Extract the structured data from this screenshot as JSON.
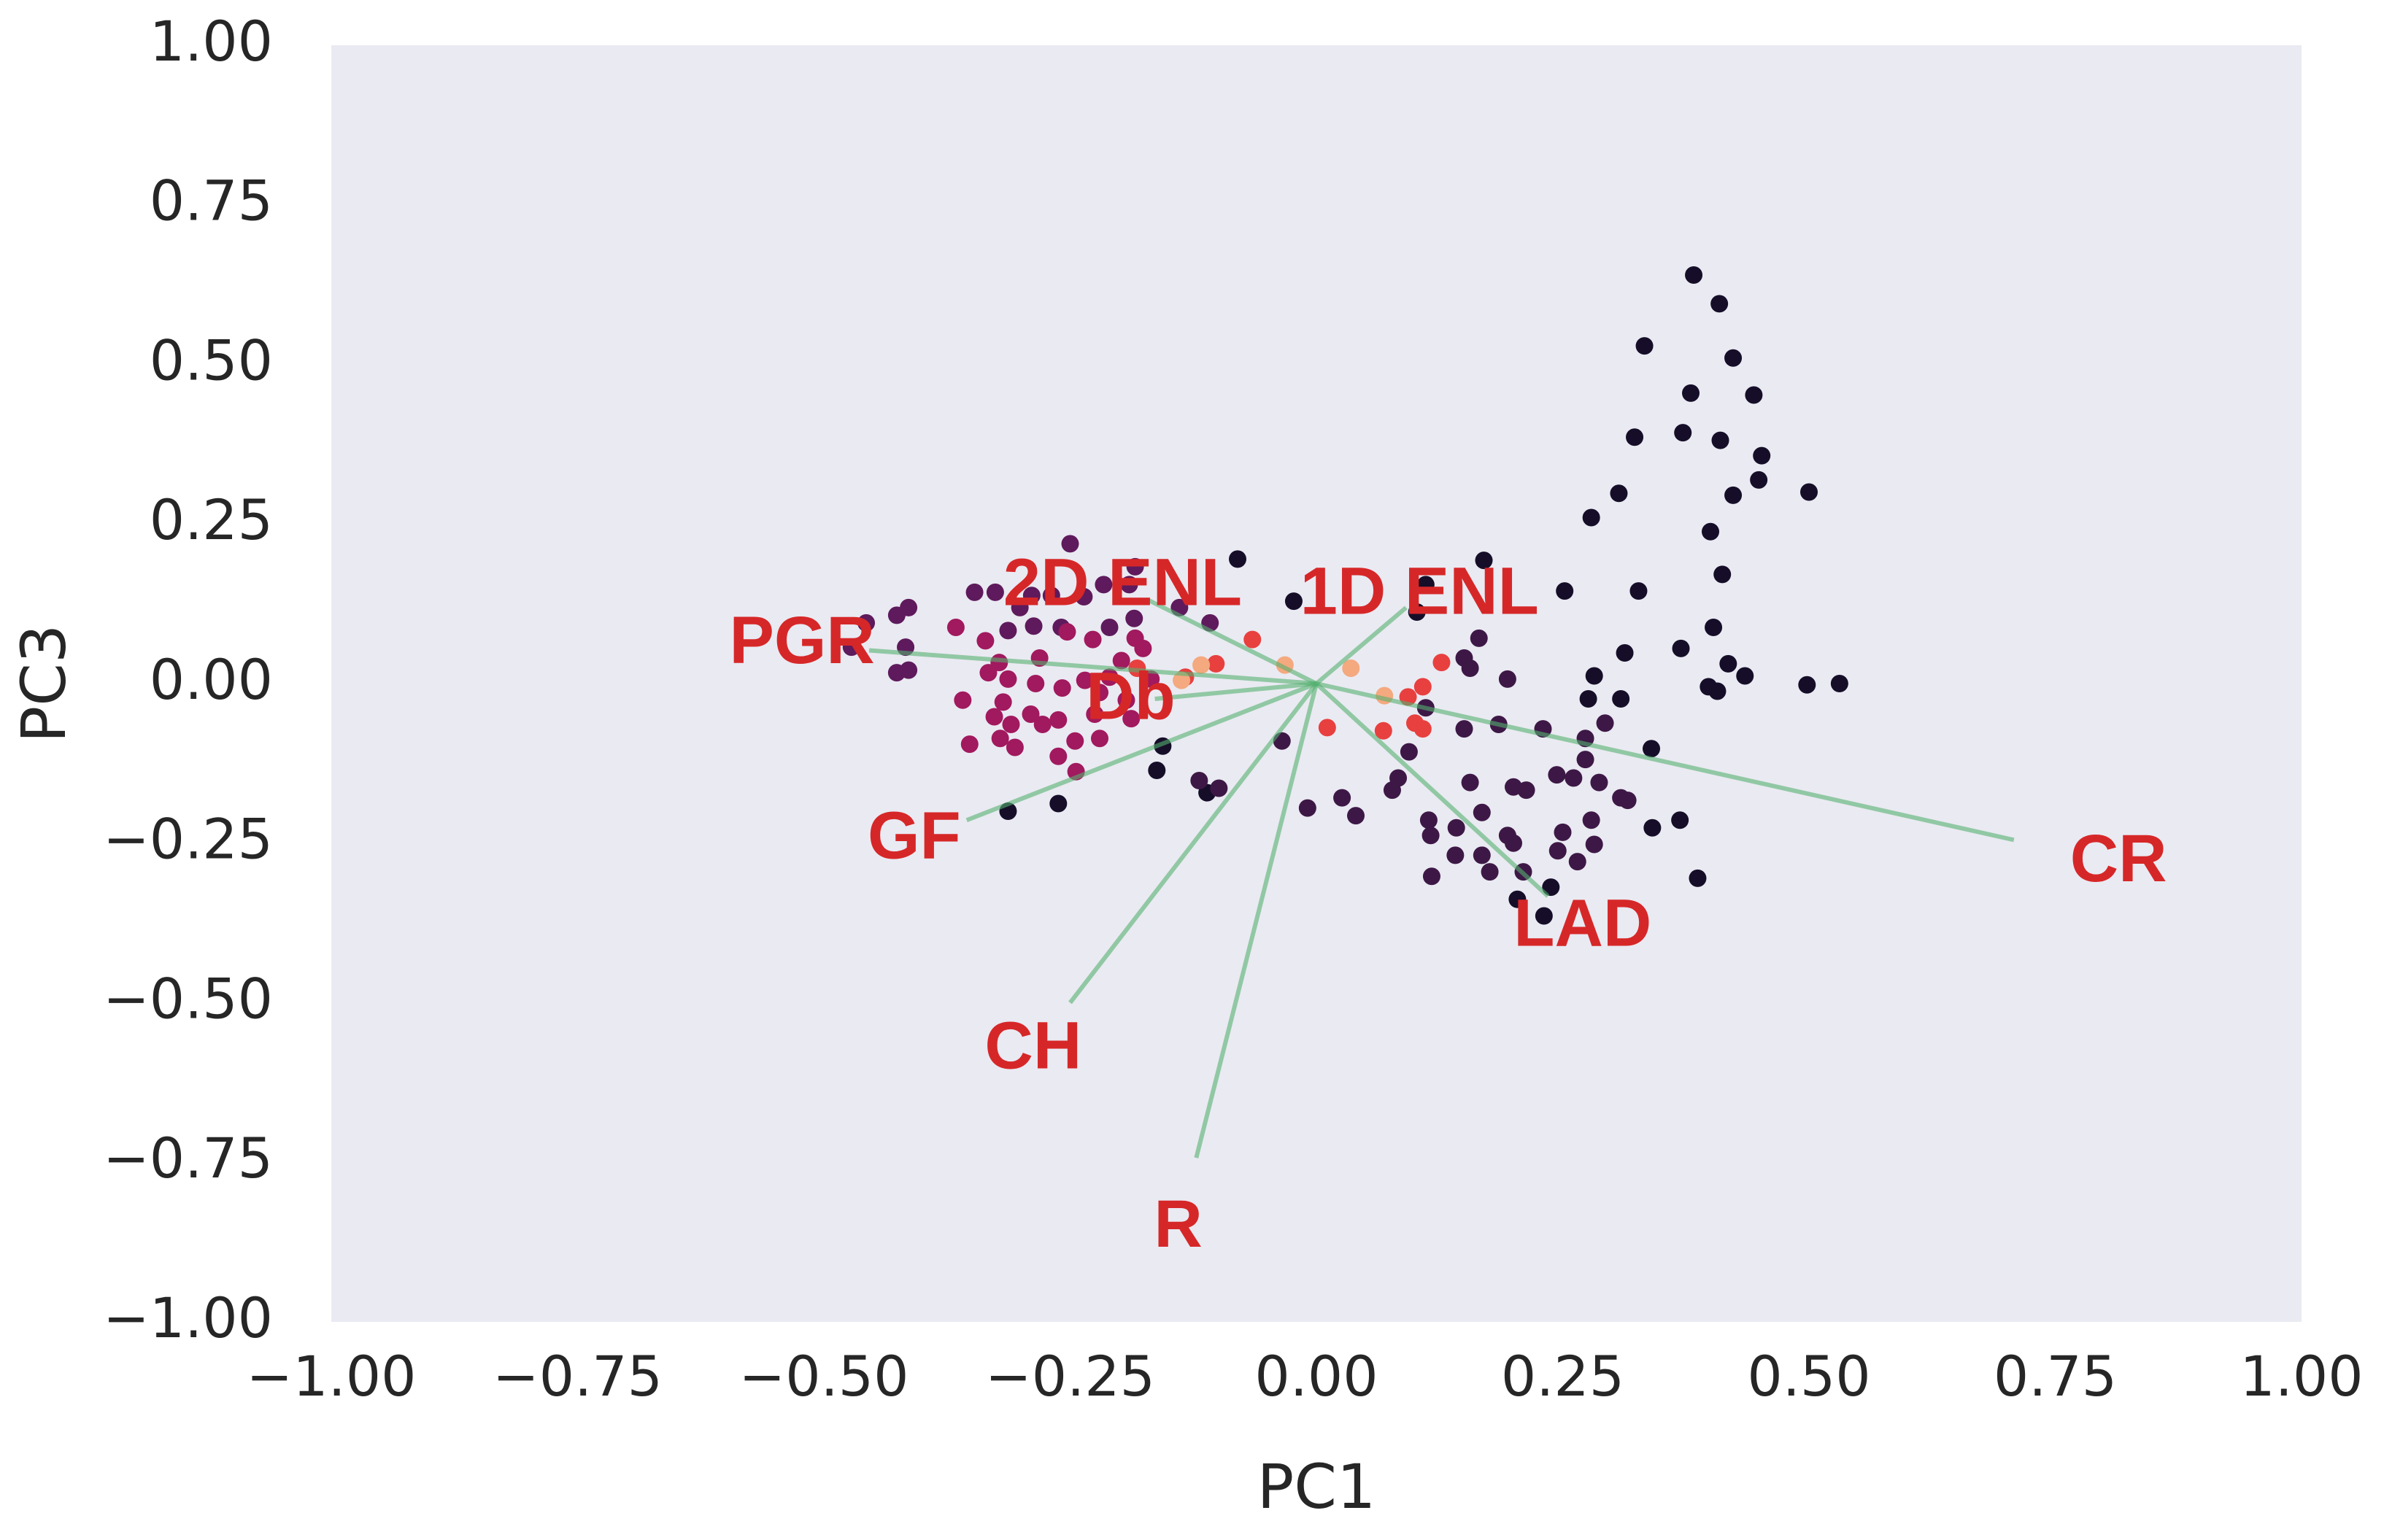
{
  "chart_data": {
    "type": "scatter",
    "xlabel": "PC1",
    "ylabel": "PC3",
    "xlim": [
      -1,
      1
    ],
    "ylim": [
      -1,
      1
    ],
    "xticks": [
      {
        "value": -1,
        "label": "−1.00"
      },
      {
        "value": -0.75,
        "label": "−0.75"
      },
      {
        "value": -0.5,
        "label": "−0.50"
      },
      {
        "value": -0.25,
        "label": "−0.25"
      },
      {
        "value": 0,
        "label": "0.00"
      },
      {
        "value": 0.25,
        "label": "0.25"
      },
      {
        "value": 0.5,
        "label": "0.50"
      },
      {
        "value": 0.75,
        "label": "0.75"
      },
      {
        "value": 1,
        "label": "1.00"
      }
    ],
    "yticks": [
      {
        "value": -1,
        "label": "−1.00"
      },
      {
        "value": -0.75,
        "label": "−0.75"
      },
      {
        "value": -0.5,
        "label": "−0.50"
      },
      {
        "value": -0.25,
        "label": "−0.25"
      },
      {
        "value": 0,
        "label": "0.00"
      },
      {
        "value": 0.25,
        "label": "0.25"
      },
      {
        "value": 0.5,
        "label": "0.50"
      },
      {
        "value": 0.75,
        "label": "0.75"
      },
      {
        "value": 1,
        "label": "1.00"
      }
    ],
    "grid": false,
    "background": "#eaeaf2",
    "series": [
      {
        "color": "#160e29",
        "x": [
          0.383,
          0.409,
          0.333,
          0.423,
          0.38,
          0.444,
          0.372,
          0.41,
          0.323,
          0.452,
          0.449,
          0.423,
          0.5,
          0.307,
          0.279,
          0.4,
          0.17,
          0.412,
          0.327,
          0.252,
          0.111,
          0.102,
          0.403,
          0.37,
          0.313,
          0.418,
          0.435,
          0.398,
          0.407,
          0.498,
          0.531,
          0.282,
          0.276,
          0.309,
          0.387,
          0.369,
          0.341,
          0.34,
          0.231,
          0.204,
          0.238,
          -0.313,
          -0.262,
          -0.08,
          -0.023,
          -0.111,
          -0.156,
          -0.162
        ],
        "y": [
          0.64,
          0.595,
          0.529,
          0.51,
          0.455,
          0.452,
          0.393,
          0.381,
          0.386,
          0.357,
          0.319,
          0.295,
          0.3,
          0.298,
          0.26,
          0.238,
          0.193,
          0.171,
          0.145,
          0.145,
          0.155,
          0.112,
          0.088,
          0.055,
          0.048,
          0.031,
          0.012,
          -0.005,
          -0.012,
          -0.002,
          0,
          0.012,
          -0.024,
          -0.024,
          -0.305,
          -0.214,
          -0.226,
          -0.102,
          -0.364,
          -0.338,
          -0.319,
          -0.2,
          -0.188,
          0.195,
          0.129,
          -0.171,
          -0.098,
          -0.136
        ]
      },
      {
        "color": "#3d1846",
        "x": [
          0.15,
          0.165,
          0.156,
          0.194,
          0.185,
          0.23,
          0.15,
          0.244,
          0.261,
          0.287,
          0.309,
          0.316,
          0.273,
          0.293,
          0.273,
          0.279,
          0.282,
          0.245,
          0.265,
          0.25,
          0.213,
          0.2,
          0.156,
          0.168,
          0.142,
          0.114,
          0.116,
          0.141,
          0.117,
          0.168,
          0.194,
          0.2,
          0.176,
          0.21,
          0.083,
          0.077,
          0.094,
          0.111,
          0.04,
          0.026,
          -0.009,
          -0.035,
          -0.099,
          -0.119
        ],
        "y": [
          0.04,
          0.071,
          0.024,
          0.007,
          -0.064,
          -0.071,
          -0.071,
          -0.143,
          -0.148,
          -0.155,
          -0.179,
          -0.183,
          -0.119,
          -0.062,
          -0.086,
          -0.214,
          -0.252,
          -0.262,
          -0.279,
          -0.233,
          -0.167,
          -0.162,
          -0.155,
          -0.202,
          -0.226,
          -0.214,
          -0.238,
          -0.269,
          -0.302,
          -0.269,
          -0.238,
          -0.25,
          -0.295,
          -0.295,
          -0.148,
          -0.167,
          -0.107,
          -0.038,
          -0.207,
          -0.179,
          -0.195,
          -0.09,
          -0.164,
          -0.152
        ]
      },
      {
        "color": "#5e1a5c",
        "x": [
          -0.25,
          -0.184,
          -0.19,
          -0.216,
          -0.236,
          -0.269,
          -0.289,
          -0.301,
          -0.326,
          -0.347,
          -0.414,
          -0.426,
          -0.457,
          -0.472,
          -0.417,
          -0.414,
          -0.426,
          -0.313,
          -0.287,
          -0.259,
          -0.21,
          -0.185,
          -0.139,
          -0.108
        ],
        "y": [
          0.219,
          0.183,
          0.155,
          0.155,
          0.136,
          0.138,
          0.138,
          0.119,
          0.143,
          0.143,
          0.119,
          0.107,
          0.095,
          0.057,
          0.057,
          0.021,
          0.017,
          0.083,
          0.09,
          0.088,
          0.088,
          0.102,
          0.119,
          0.095
        ]
      },
      {
        "color": "#a1195e",
        "x": [
          -0.366,
          -0.336,
          -0.322,
          -0.281,
          -0.253,
          -0.227,
          -0.198,
          -0.21,
          -0.235,
          -0.22,
          -0.258,
          -0.285,
          -0.313,
          -0.333,
          -0.359,
          -0.318,
          -0.29,
          -0.262,
          -0.225,
          -0.193,
          -0.168,
          -0.176,
          -0.184,
          -0.327,
          -0.31,
          -0.278,
          -0.245,
          -0.22,
          -0.352,
          -0.321,
          -0.306,
          -0.262,
          -0.244,
          -0.188
        ],
        "y": [
          0.088,
          0.067,
          0.033,
          0.04,
          0.081,
          0.069,
          0.036,
          0.01,
          0.005,
          -0.014,
          -0.007,
          0,
          0.007,
          0.017,
          -0.026,
          -0.029,
          -0.048,
          -0.057,
          -0.048,
          -0.026,
          0.007,
          0.055,
          0.071,
          -0.052,
          -0.064,
          -0.064,
          -0.09,
          -0.086,
          -0.095,
          -0.086,
          -0.1,
          -0.114,
          -0.138,
          -0.055
        ]
      },
      {
        "color": "#e8403f",
        "x": [
          -0.065,
          -0.133,
          -0.102,
          -0.182,
          0.011,
          0.108,
          0.093,
          0.127,
          0.068,
          0.1,
          0.108
        ],
        "y": [
          0.069,
          0.01,
          0.031,
          0.024,
          -0.069,
          -0.005,
          -0.021,
          0.033,
          -0.074,
          -0.062,
          -0.071
        ]
      },
      {
        "color": "#f4a97f",
        "x": [
          -0.032,
          0.035,
          0.069,
          -0.117,
          -0.137
        ],
        "y": [
          0.029,
          0.024,
          -0.019,
          0.029,
          0.005
        ]
      }
    ],
    "loading_color": "#55b06f",
    "loading_label_color": "#d62728",
    "loadings": [
      {
        "label": "CR",
        "x": 0.708,
        "y": -0.245
      },
      {
        "label": "LAD",
        "x": 0.235,
        "y": -0.333
      },
      {
        "label": "R",
        "x": -0.122,
        "y": -0.743
      },
      {
        "label": "CH",
        "x": -0.25,
        "y": -0.5
      },
      {
        "label": "GF",
        "x": -0.355,
        "y": -0.214
      },
      {
        "label": "Db",
        "x": -0.164,
        "y": -0.024
      },
      {
        "label": "PGR",
        "x": -0.454,
        "y": 0.052
      },
      {
        "label": "2D ENL",
        "x": -0.171,
        "y": 0.131
      },
      {
        "label": "1D ENL",
        "x": 0.091,
        "y": 0.119
      }
    ]
  }
}
